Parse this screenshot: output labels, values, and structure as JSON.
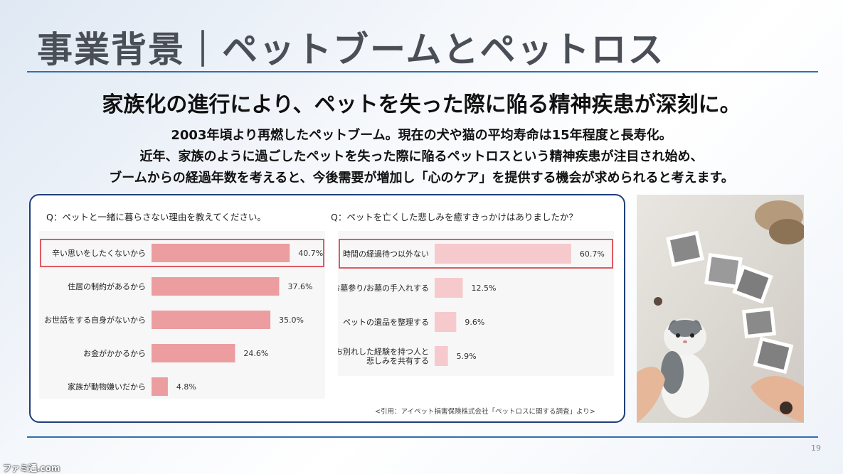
{
  "slide": {
    "title": "事業背景｜ペットブームとペットロス",
    "headline": "家族化の進行により、ペットを失った際に陥る精神疾患が深刻に。",
    "body_lines": [
      "2003年頃より再燃したペットブーム。現在の犬や猫の平均寿命は15年程度と長寿化。",
      "近年、家族のように過ごしたペットを失った際に陥るペットロスという精神疾患が注目され始め、",
      "ブームからの経過年数を考えると、今後需要が増加し「心のケア」を提供する機会が求められると考えます。"
    ],
    "page_number": "19",
    "watermark": "ファミ通.com"
  },
  "survey": {
    "citation": "<引用：アイペット損害保険株式会社「ペットロスに関する調査」より>"
  },
  "chart_data": [
    {
      "type": "bar",
      "orientation": "horizontal",
      "title": "Q：ペットと一緒に暮らさない理由を教えてください。",
      "categories": [
        "辛い思いをしたくないから",
        "住居の制約があるから",
        "お世話をする自身がないから",
        "お金がかかるから",
        "家族が動物嫌いだから"
      ],
      "values": [
        40.7,
        37.6,
        35.0,
        24.6,
        4.8
      ],
      "value_labels": [
        "40.7%",
        "37.6%",
        "35.0%",
        "24.6%",
        "4.8%"
      ],
      "unit": "%",
      "xlim": [
        0,
        44
      ],
      "highlighted_index": 0,
      "bar_color": "#eb9d9f",
      "highlight_color": "#d8343f"
    },
    {
      "type": "bar",
      "orientation": "horizontal",
      "title": "Q：ペットを亡くした悲しみを癒すきっかけはありましたか？",
      "categories": [
        "時間の経過待つ以外ない",
        "お墓参り/お墓の手入れする",
        "ペットの遺品を整理する",
        "お別れした経験を持つ人と\n悲しみを共有する"
      ],
      "values": [
        60.7,
        12.5,
        9.6,
        5.9
      ],
      "value_labels": [
        "60.7%",
        "12.5%",
        "9.6%",
        "5.9%"
      ],
      "unit": "%",
      "xlim": [
        0,
        62
      ],
      "highlighted_index": 0,
      "bar_color": "#f6c9cd",
      "highlight_color": "#d8343f"
    }
  ]
}
